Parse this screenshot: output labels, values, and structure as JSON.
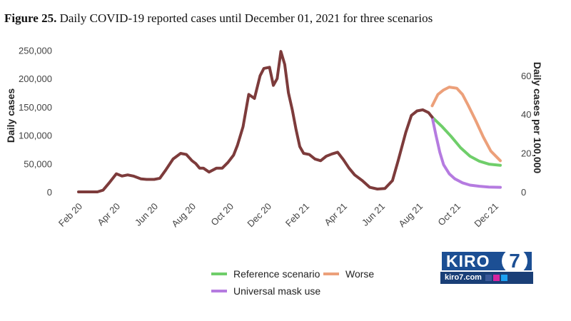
{
  "title": {
    "number": "Figure 25.",
    "text": "Daily COVID-19 reported cases until December 01, 2021 for three scenarios"
  },
  "chart_data": {
    "type": "line",
    "ylabel": "Daily cases",
    "y2label": "Daily cases per 100,000",
    "ylim": [
      0,
      260000
    ],
    "y_ticks": [
      "0",
      "50,000",
      "100,000",
      "150,000",
      "200,000",
      "250,000"
    ],
    "y_tick_values": [
      0,
      50000,
      100000,
      150000,
      200000,
      250000
    ],
    "y2_ticks": [
      "0",
      "20",
      "40",
      "60"
    ],
    "y2_tick_values": [
      0,
      20,
      40,
      60
    ],
    "x_ticks": [
      "Feb 20",
      "Apr 20",
      "Jun 20",
      "Aug 20",
      "Oct 20",
      "Dec 20",
      "Feb 21",
      "Apr 21",
      "Jun 21",
      "Aug 21",
      "Oct 21",
      "Dec 21"
    ],
    "x_tick_months": [
      0,
      2,
      4,
      6,
      8,
      10,
      12,
      14,
      16,
      18,
      20,
      22
    ],
    "grid": false,
    "legend": "bottom",
    "observed": {
      "color": "#7d3b3b",
      "x": [
        0,
        1,
        1.3,
        1.6,
        2,
        2.3,
        2.6,
        2.9,
        3.3,
        3.6,
        4,
        4.3,
        4.6,
        5,
        5.4,
        5.7,
        6,
        6.2,
        6.4,
        6.6,
        6.9,
        7.3,
        7.6,
        7.9,
        8.2,
        8.4,
        8.7,
        9,
        9.3,
        9.6,
        9.8,
        10.1,
        10.3,
        10.5,
        10.7,
        10.9,
        11.1,
        11.3,
        11.5,
        11.7,
        11.9,
        12.2,
        12.5,
        12.8,
        13.1,
        13.4,
        13.7,
        14,
        14.3,
        14.6,
        15,
        15.4,
        15.8,
        16.2,
        16.6,
        16.9,
        17.3,
        17.6,
        17.9,
        18.2,
        18.5,
        18.7
      ],
      "y": [
        0,
        0,
        3000,
        15000,
        32000,
        28000,
        30000,
        28000,
        23000,
        22000,
        22000,
        24000,
        38000,
        58000,
        68000,
        66000,
        55000,
        50000,
        42000,
        42000,
        35000,
        42000,
        42000,
        52000,
        65000,
        82000,
        115000,
        172000,
        165000,
        205000,
        218000,
        220000,
        188000,
        200000,
        248000,
        225000,
        175000,
        145000,
        110000,
        80000,
        68000,
        66000,
        58000,
        55000,
        63000,
        67000,
        70000,
        57000,
        42000,
        30000,
        20000,
        8000,
        5000,
        6000,
        20000,
        55000,
        105000,
        135000,
        143000,
        145000,
        140000,
        132000
      ]
    },
    "series": [
      {
        "name": "Reference scenario",
        "color": "#6fce6a",
        "x": [
          18.7,
          19.2,
          19.7,
          20.2,
          20.7,
          21.2,
          21.7,
          22.3
        ],
        "y": [
          132000,
          116000,
          98000,
          78000,
          63000,
          54000,
          49000,
          47000
        ]
      },
      {
        "name": "Worse",
        "color": "#eca07a",
        "x": [
          18.7,
          19,
          19.3,
          19.6,
          20,
          20.3,
          20.6,
          21,
          21.4,
          21.8,
          22.3
        ],
        "y": [
          152000,
          172000,
          180000,
          185000,
          183000,
          172000,
          153000,
          126000,
          97000,
          72000,
          55000
        ]
      },
      {
        "name": "Universal mask use",
        "color": "#b57be0",
        "x": [
          18.7,
          18.9,
          19.1,
          19.3,
          19.6,
          19.9,
          20.3,
          20.7,
          21.2,
          21.7,
          22.3
        ],
        "y": [
          132000,
          100000,
          70000,
          48000,
          32000,
          23000,
          16000,
          12000,
          10000,
          8500,
          8000
        ]
      }
    ]
  },
  "logo": {
    "name": "KIRO",
    "number": "7",
    "site": "kiro7.com"
  }
}
